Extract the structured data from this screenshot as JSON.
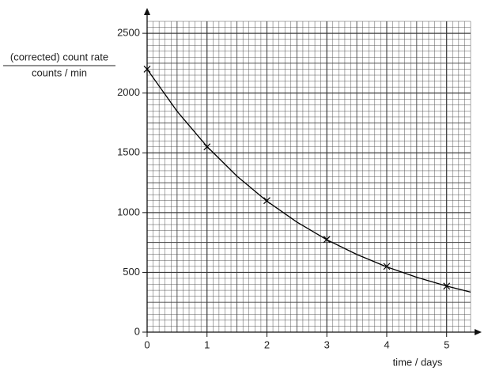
{
  "chart_data": {
    "type": "scatter",
    "y_label": "(corrected) count rate",
    "y_unit_label": "counts / min",
    "x_label": "time / days",
    "xlim": [
      0,
      5.4
    ],
    "ylim": [
      0,
      2600
    ],
    "xticks": [
      0,
      1,
      2,
      3,
      4,
      5
    ],
    "yticks": [
      0,
      500,
      1000,
      1500,
      2000,
      2500
    ],
    "grid": true,
    "color": "#000000",
    "points": {
      "x": [
        0,
        1,
        2,
        3,
        4,
        5
      ],
      "y": [
        2200,
        1550,
        1100,
        775,
        550,
        385
      ]
    },
    "curve": {
      "x": [
        0,
        0.5,
        1,
        1.5,
        2,
        2.5,
        3,
        3.5,
        4,
        4.5,
        5,
        5.4
      ],
      "y": [
        2200,
        1848,
        1553,
        1305,
        1096,
        921,
        773,
        650,
        546,
        459,
        385,
        335
      ]
    }
  }
}
